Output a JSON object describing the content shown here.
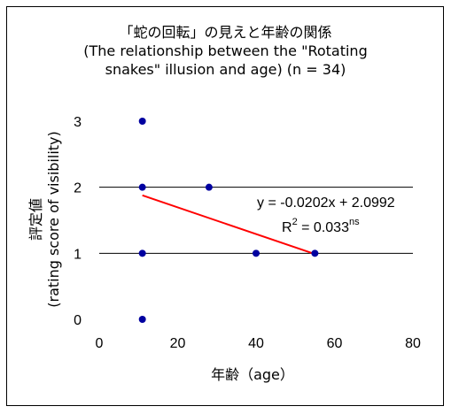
{
  "title_lines": [
    "「蛇の回転」の見えと年齢の関係",
    "(The relationship between the \"Rotating",
    "snakes\" illusion and age) (n = 34)"
  ],
  "chart_data": {
    "type": "scatter",
    "xlabel": "年齢（age）",
    "ylabel_lines": [
      "評定値",
      "(rating score of visibility)"
    ],
    "xlim": [
      0,
      80
    ],
    "ylim": [
      0,
      3
    ],
    "xticks": [
      "0",
      "20",
      "40",
      "60",
      "80"
    ],
    "yticks": [
      "0",
      "1",
      "2",
      "3"
    ],
    "grid": "horizontal",
    "points": [
      {
        "x": 11,
        "y": 3
      },
      {
        "x": 11,
        "y": 2
      },
      {
        "x": 28,
        "y": 2
      },
      {
        "x": 11,
        "y": 1
      },
      {
        "x": 40,
        "y": 1
      },
      {
        "x": 55,
        "y": 1
      },
      {
        "x": 11,
        "y": 0
      }
    ],
    "trendline": {
      "slope": -0.0202,
      "intercept": 2.0992,
      "x_start": 11,
      "x_end": 55,
      "color": "#ff0000"
    },
    "equation": {
      "text": "y = -0.0202x + 2.0992",
      "r2_prefix": "R",
      "r2_sup": "2",
      "r2_value": " = 0.033",
      "r2_note": "ns"
    },
    "colors": {
      "points": "#0000a0",
      "grid": "#000000"
    }
  }
}
